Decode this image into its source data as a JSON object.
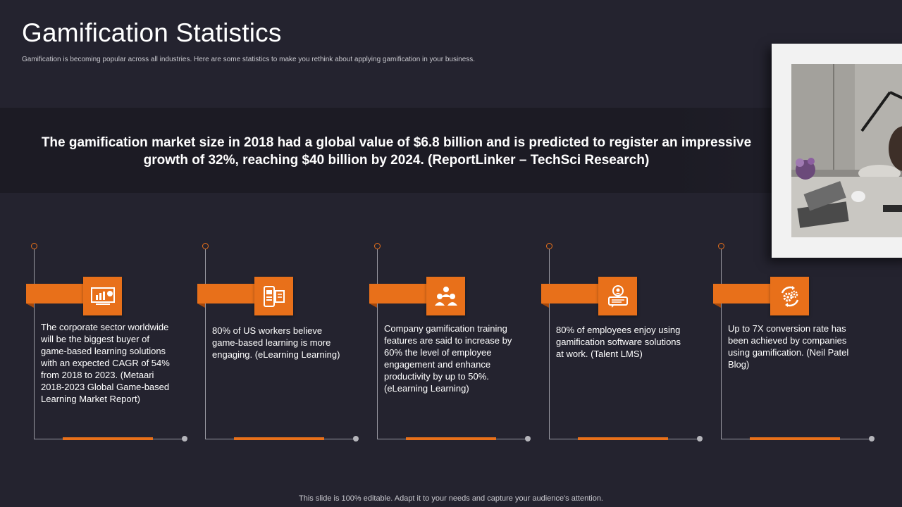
{
  "title": "Gamification Statistics",
  "subtitle": "Gamification is becoming popular across all industries. Here are some statistics to make you rethink about applying gamification in your business.",
  "banner": "The gamification market size in 2018 had a global value of $6.8 billion and is predicted to register an impressive growth of 32%, reaching $40 billion by 2024. (ReportLinker – TechSci Research)",
  "accent_color": "#e8701a",
  "background_color": "#24232f",
  "cards": [
    {
      "icon": "presentation-chart-icon",
      "text": "The corporate sector worldwide will be the biggest buyer of game-based learning solutions with an expected CAGR of  54% from 2018 to 2023. (Metaari 2018-2023 Global Game-based Learning Market Report)"
    },
    {
      "icon": "mobile-ebook-icon",
      "text": "80% of US workers believe game-based learning is more engaging. (eLearning Learning)"
    },
    {
      "icon": "team-users-icon",
      "text": "Company gamification training features are said to increase by 60% the level of employee engagement and enhance productivity by up to 50%. (eLearning Learning)"
    },
    {
      "icon": "employee-chat-icon",
      "text": "80% of employees enjoy using gamification software solutions at work. (Talent LMS)"
    },
    {
      "icon": "gears-cycle-icon",
      "text": "Up to 7X conversion rate has been achieved by companies using gamification. (Neil Patel Blog)"
    }
  ],
  "footer": "This slide is 100% editable. Adapt it to your needs and capture your audience's attention."
}
